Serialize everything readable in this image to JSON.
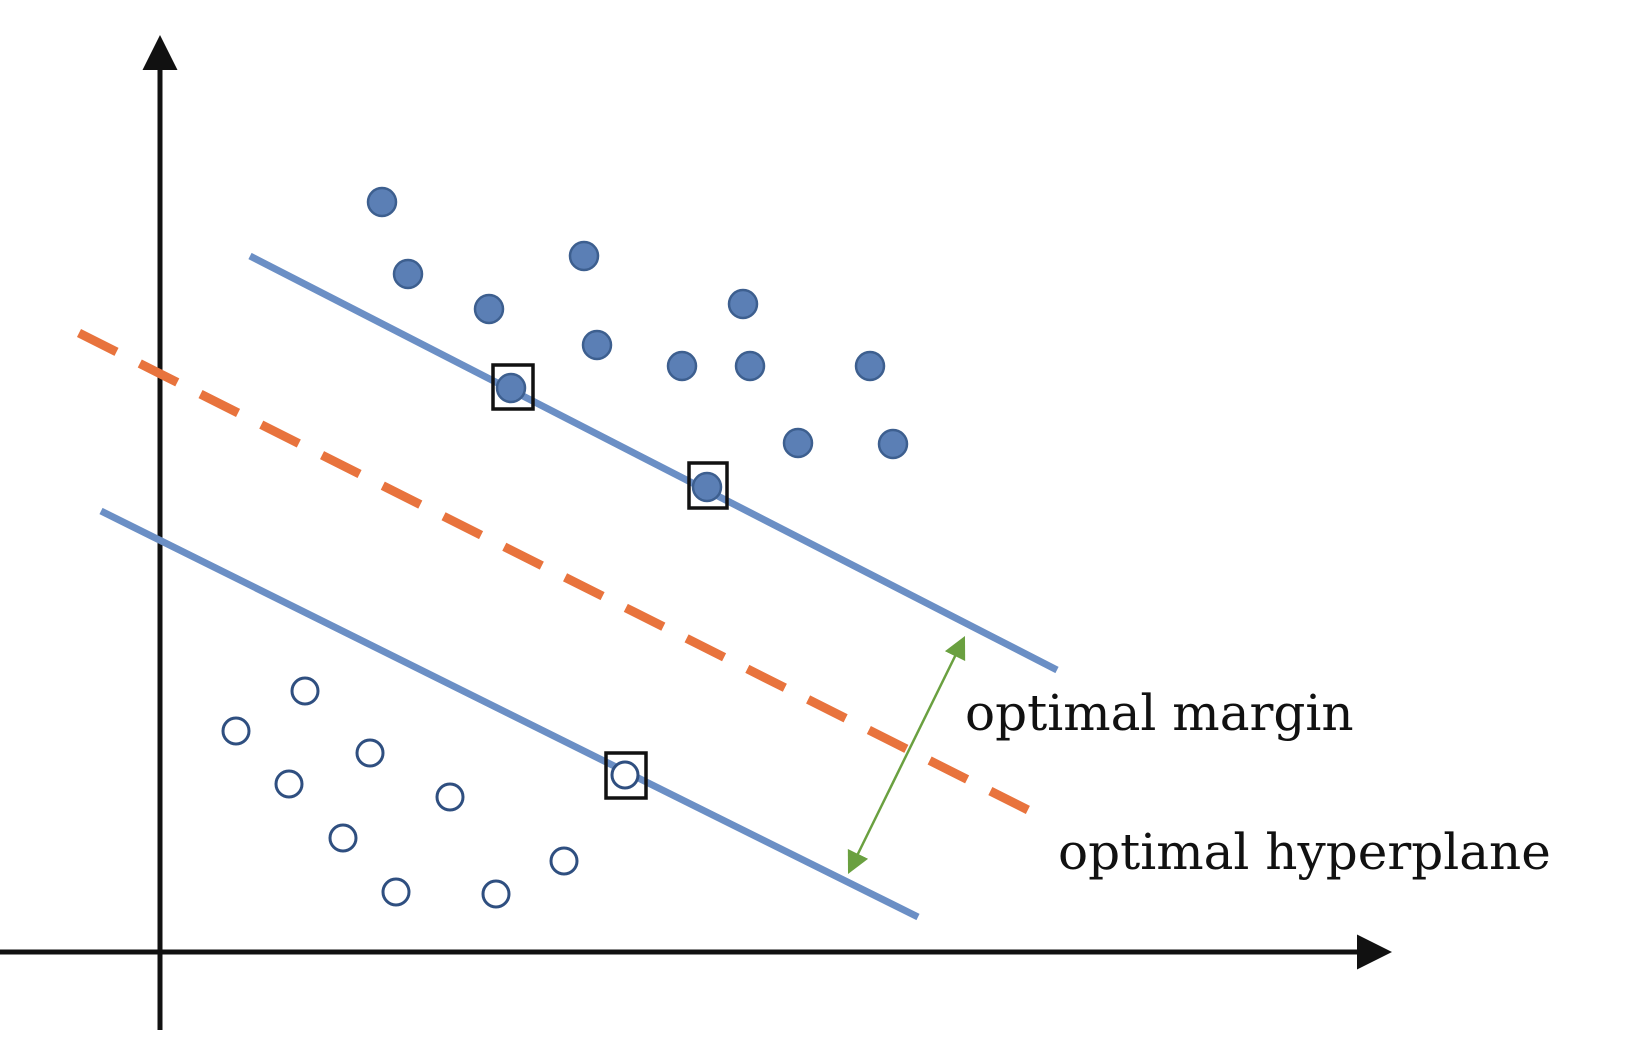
{
  "labels": {
    "margin": "optimal margin",
    "hyperplane": "optimal hyperplane"
  },
  "colors": {
    "axis": "#111111",
    "class_a_fill": "#5b7fb5",
    "class_a_stroke": "#3d5f8f",
    "class_b_stroke": "#2f4f80",
    "margin_line": "#6b8fc5",
    "hyperplane_line": "#e8733d",
    "margin_arrow": "#6aa040",
    "support_box": "#111111"
  }
}
